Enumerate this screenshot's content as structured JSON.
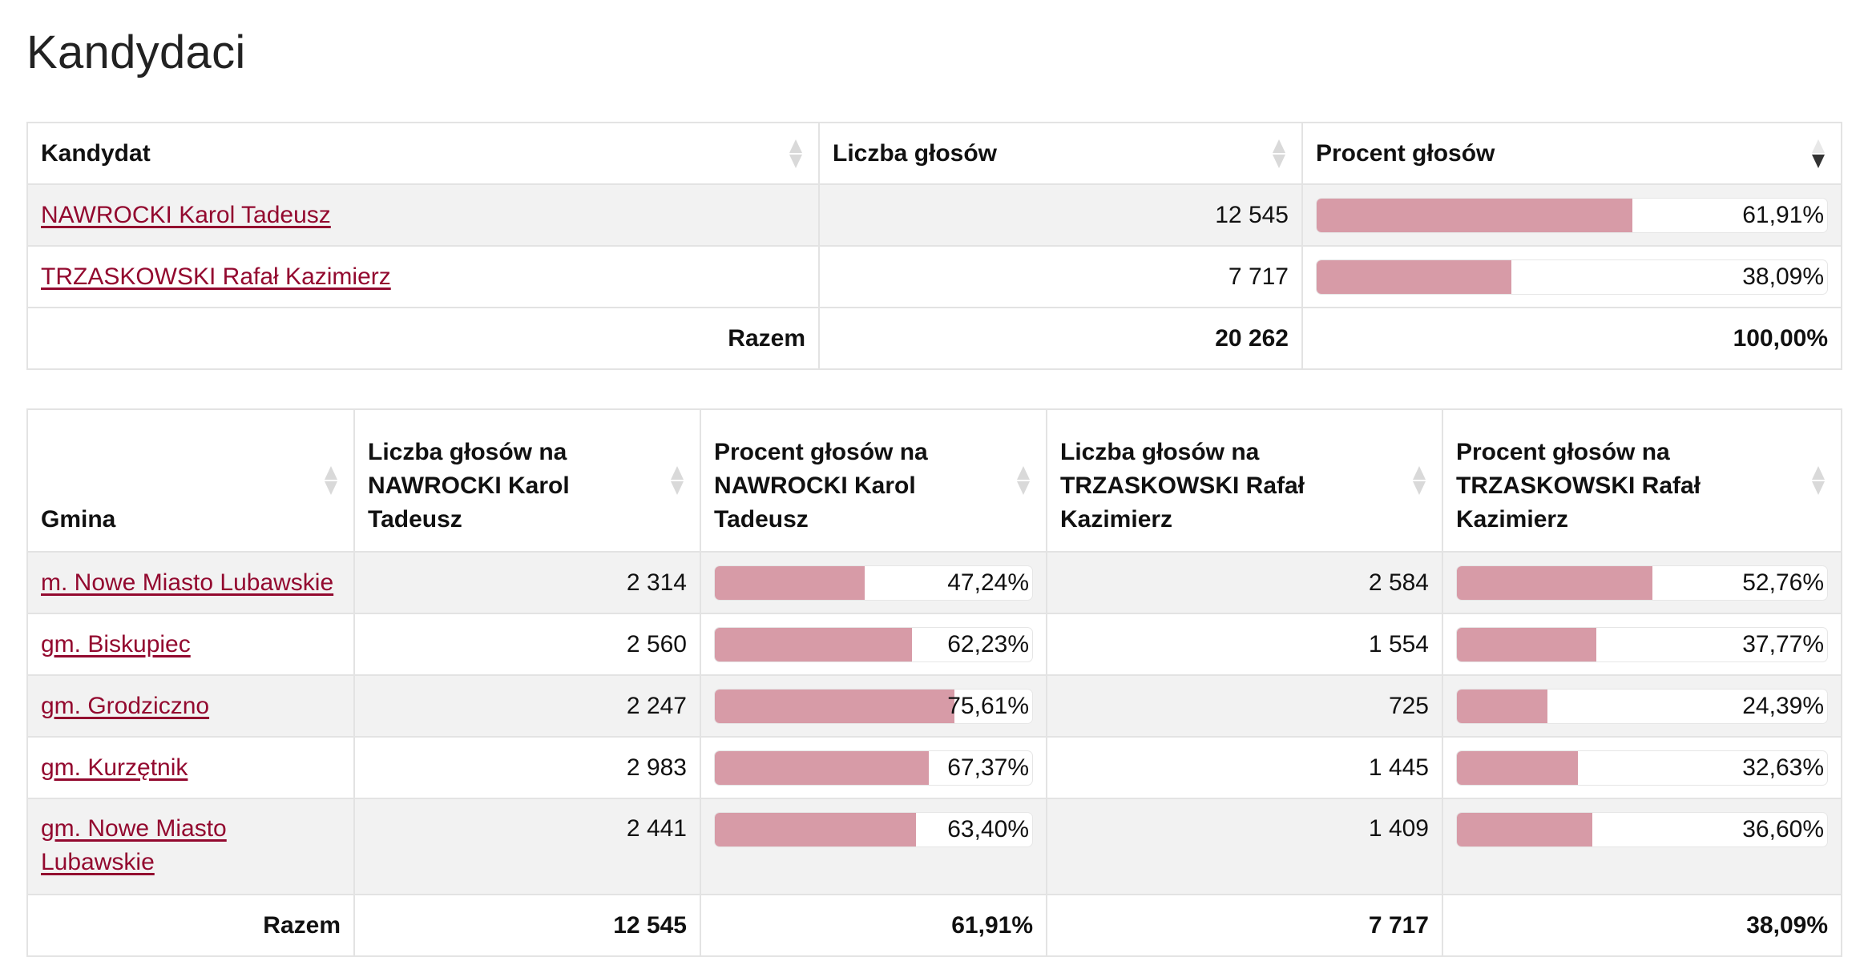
{
  "page_title": "Kandydaci",
  "summary": {
    "headers": {
      "candidate": "Kandydat",
      "votes": "Liczba głosów",
      "percent": "Procent głosów"
    },
    "rows": [
      {
        "name": "NAWROCKI Karol Tadeusz",
        "votes": "12 545",
        "percent": "61,91%",
        "share": 0.6191
      },
      {
        "name": "TRZASKOWSKI Rafał Kazimierz",
        "votes": "7 717",
        "percent": "38,09%",
        "share": 0.3809
      }
    ],
    "total": {
      "label": "Razem",
      "votes": "20 262",
      "percent": "100,00%"
    }
  },
  "gminy": {
    "headers": {
      "gmina": "Gmina",
      "votes_a": "Liczba głosów na NAWROCKI Karol Tadeusz",
      "percent_a": "Procent głosów na NAWROCKI Karol Tadeusz",
      "votes_b": "Liczba głosów na TRZASKOWSKI Rafał Kazimierz",
      "percent_b": "Procent głosów na TRZASKOWSKI Rafał Kazimierz"
    },
    "rows": [
      {
        "name": "m. Nowe Miasto Lubawskie",
        "votes_a": "2 314",
        "percent_a": "47,24%",
        "share_a": 0.4724,
        "votes_b": "2 584",
        "percent_b": "52,76%",
        "share_b": 0.5276
      },
      {
        "name": "gm. Biskupiec",
        "votes_a": "2 560",
        "percent_a": "62,23%",
        "share_a": 0.6223,
        "votes_b": "1 554",
        "percent_b": "37,77%",
        "share_b": 0.3777
      },
      {
        "name": "gm. Grodziczno",
        "votes_a": "2 247",
        "percent_a": "75,61%",
        "share_a": 0.7561,
        "votes_b": "725",
        "percent_b": "24,39%",
        "share_b": 0.2439
      },
      {
        "name": "gm. Kurzętnik",
        "votes_a": "2 983",
        "percent_a": "67,37%",
        "share_a": 0.6737,
        "votes_b": "1 445",
        "percent_b": "32,63%",
        "share_b": 0.3263
      },
      {
        "name": "gm. Nowe Miasto Lubawskie",
        "votes_a": "2 441",
        "percent_a": "63,40%",
        "share_a": 0.634,
        "votes_b": "1 409",
        "percent_b": "36,60%",
        "share_b": 0.366
      }
    ],
    "total": {
      "label": "Razem",
      "votes_a": "12 545",
      "percent_a": "61,91%",
      "votes_b": "7 717",
      "percent_b": "38,09%"
    }
  },
  "colors": {
    "link": "#93092f",
    "bar_fill": "#d79ba7",
    "row_alt": "#f2f2f2"
  }
}
